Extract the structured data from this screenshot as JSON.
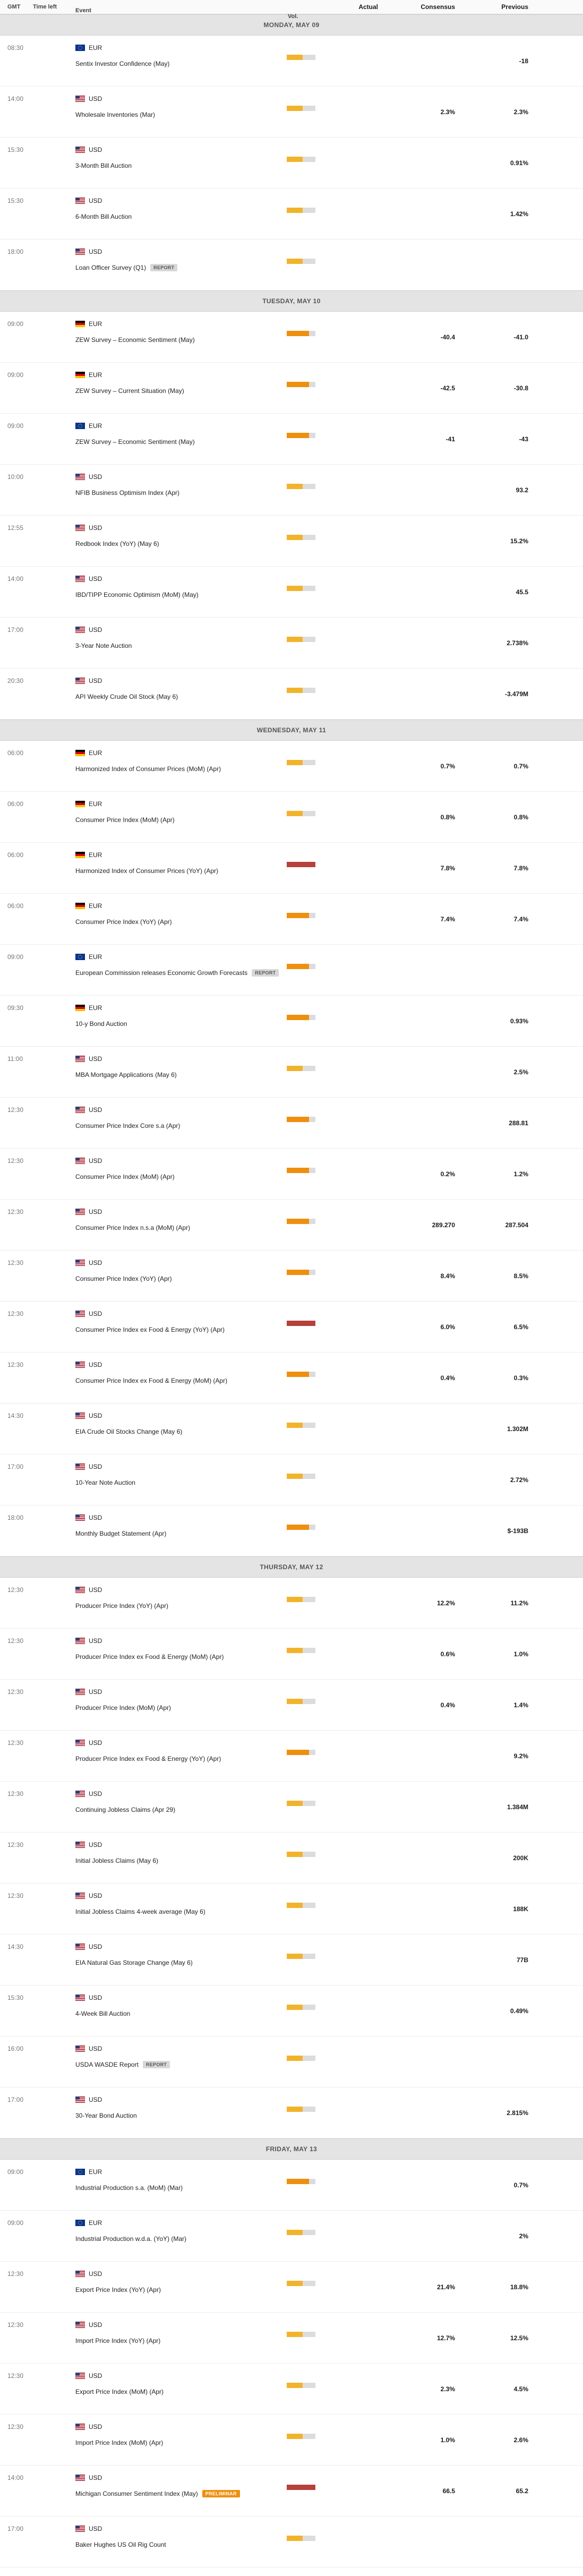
{
  "header": {
    "columns": [
      "GMT",
      "Time left",
      "Event",
      "Vol.",
      "Actual",
      "Consensus",
      "Previous"
    ]
  },
  "colors": {
    "vol_low": "#f2b32c",
    "vol_medium": "#ee8f0e",
    "vol_high": "#b5413a",
    "vol_empty": "#dcdcdc",
    "day_header_bg": "#e4e4e4",
    "badge_report_bg": "#d8d8d8",
    "badge_preliminar_bg": "#ee8f0e"
  },
  "days": [
    {
      "label": "MONDAY, MAY 09",
      "events": [
        {
          "gmt": "08:30",
          "flag": "eu",
          "currency": "EUR",
          "name": "Sentix Investor Confidence (May)",
          "vol": "low",
          "actual": "",
          "consensus": "",
          "previous": "-18",
          "badge": ""
        },
        {
          "gmt": "14:00",
          "flag": "us",
          "currency": "USD",
          "name": "Wholesale Inventories (Mar)",
          "vol": "low",
          "actual": "",
          "consensus": "2.3%",
          "previous": "2.3%",
          "badge": ""
        },
        {
          "gmt": "15:30",
          "flag": "us",
          "currency": "USD",
          "name": "3-Month Bill Auction",
          "vol": "low",
          "actual": "",
          "consensus": "",
          "previous": "0.91%",
          "badge": ""
        },
        {
          "gmt": "15:30",
          "flag": "us",
          "currency": "USD",
          "name": "6-Month Bill Auction",
          "vol": "low",
          "actual": "",
          "consensus": "",
          "previous": "1.42%",
          "badge": ""
        },
        {
          "gmt": "18:00",
          "flag": "us",
          "currency": "USD",
          "name": "Loan Officer Survey (Q1)",
          "vol": "low",
          "actual": "",
          "consensus": "",
          "previous": "",
          "badge": "REPORT",
          "badge_style": "report"
        }
      ]
    },
    {
      "label": "TUESDAY, MAY 10",
      "events": [
        {
          "gmt": "09:00",
          "flag": "de",
          "currency": "EUR",
          "name": "ZEW Survey – Economic Sentiment (May)",
          "vol": "medium",
          "actual": "",
          "consensus": "-40.4",
          "previous": "-41.0",
          "badge": ""
        },
        {
          "gmt": "09:00",
          "flag": "de",
          "currency": "EUR",
          "name": "ZEW Survey – Current Situation (May)",
          "vol": "medium",
          "actual": "",
          "consensus": "-42.5",
          "previous": "-30.8",
          "badge": ""
        },
        {
          "gmt": "09:00",
          "flag": "eu",
          "currency": "EUR",
          "name": "ZEW Survey – Economic Sentiment (May)",
          "vol": "medium",
          "actual": "",
          "consensus": "-41",
          "previous": "-43",
          "badge": ""
        },
        {
          "gmt": "10:00",
          "flag": "us",
          "currency": "USD",
          "name": "NFIB Business Optimism Index (Apr)",
          "vol": "low",
          "actual": "",
          "consensus": "",
          "previous": "93.2",
          "badge": ""
        },
        {
          "gmt": "12:55",
          "flag": "us",
          "currency": "USD",
          "name": "Redbook Index (YoY) (May 6)",
          "vol": "low",
          "actual": "",
          "consensus": "",
          "previous": "15.2%",
          "badge": ""
        },
        {
          "gmt": "14:00",
          "flag": "us",
          "currency": "USD",
          "name": "IBD/TIPP Economic Optimism (MoM) (May)",
          "vol": "low",
          "actual": "",
          "consensus": "",
          "previous": "45.5",
          "badge": ""
        },
        {
          "gmt": "17:00",
          "flag": "us",
          "currency": "USD",
          "name": "3-Year Note Auction",
          "vol": "low",
          "actual": "",
          "consensus": "",
          "previous": "2.738%",
          "badge": ""
        },
        {
          "gmt": "20:30",
          "flag": "us",
          "currency": "USD",
          "name": "API Weekly Crude Oil Stock (May 6)",
          "vol": "low",
          "actual": "",
          "consensus": "",
          "previous": "-3.479M",
          "badge": ""
        }
      ]
    },
    {
      "label": "WEDNESDAY, MAY 11",
      "events": [
        {
          "gmt": "06:00",
          "flag": "de",
          "currency": "EUR",
          "name": "Harmonized Index of Consumer Prices (MoM) (Apr)",
          "vol": "low",
          "actual": "",
          "consensus": "0.7%",
          "previous": "0.7%",
          "badge": ""
        },
        {
          "gmt": "06:00",
          "flag": "de",
          "currency": "EUR",
          "name": "Consumer Price Index (MoM) (Apr)",
          "vol": "low",
          "actual": "",
          "consensus": "0.8%",
          "previous": "0.8%",
          "badge": ""
        },
        {
          "gmt": "06:00",
          "flag": "de",
          "currency": "EUR",
          "name": "Harmonized Index of Consumer Prices (YoY) (Apr)",
          "vol": "high",
          "actual": "",
          "consensus": "7.8%",
          "previous": "7.8%",
          "badge": ""
        },
        {
          "gmt": "06:00",
          "flag": "de",
          "currency": "EUR",
          "name": "Consumer Price Index (YoY) (Apr)",
          "vol": "medium",
          "actual": "",
          "consensus": "7.4%",
          "previous": "7.4%",
          "badge": ""
        },
        {
          "gmt": "09:00",
          "flag": "eu",
          "currency": "EUR",
          "name": "European Commission releases Economic Growth Forecasts",
          "vol": "medium",
          "actual": "",
          "consensus": "",
          "previous": "",
          "badge": "REPORT",
          "badge_style": "report"
        },
        {
          "gmt": "09:30",
          "flag": "de",
          "currency": "EUR",
          "name": "10-y Bond Auction",
          "vol": "medium",
          "actual": "",
          "consensus": "",
          "previous": "0.93%",
          "badge": ""
        },
        {
          "gmt": "11:00",
          "flag": "us",
          "currency": "USD",
          "name": "MBA Mortgage Applications (May 6)",
          "vol": "low",
          "actual": "",
          "consensus": "",
          "previous": "2.5%",
          "badge": ""
        },
        {
          "gmt": "12:30",
          "flag": "us",
          "currency": "USD",
          "name": "Consumer Price Index Core s.a (Apr)",
          "vol": "medium",
          "actual": "",
          "consensus": "",
          "previous": "288.81",
          "badge": ""
        },
        {
          "gmt": "12:30",
          "flag": "us",
          "currency": "USD",
          "name": "Consumer Price Index (MoM) (Apr)",
          "vol": "medium",
          "actual": "",
          "consensus": "0.2%",
          "previous": "1.2%",
          "badge": ""
        },
        {
          "gmt": "12:30",
          "flag": "us",
          "currency": "USD",
          "name": "Consumer Price Index n.s.a (MoM) (Apr)",
          "vol": "medium",
          "actual": "",
          "consensus": "289.270",
          "previous": "287.504",
          "badge": ""
        },
        {
          "gmt": "12:30",
          "flag": "us",
          "currency": "USD",
          "name": "Consumer Price Index (YoY) (Apr)",
          "vol": "medium",
          "actual": "",
          "consensus": "8.4%",
          "previous": "8.5%",
          "badge": ""
        },
        {
          "gmt": "12:30",
          "flag": "us",
          "currency": "USD",
          "name": "Consumer Price Index ex Food & Energy (YoY) (Apr)",
          "vol": "high",
          "actual": "",
          "consensus": "6.0%",
          "previous": "6.5%",
          "badge": ""
        },
        {
          "gmt": "12:30",
          "flag": "us",
          "currency": "USD",
          "name": "Consumer Price Index ex Food & Energy (MoM) (Apr)",
          "vol": "medium",
          "actual": "",
          "consensus": "0.4%",
          "previous": "0.3%",
          "badge": ""
        },
        {
          "gmt": "14:30",
          "flag": "us",
          "currency": "USD",
          "name": "EIA Crude Oil Stocks Change (May 6)",
          "vol": "low",
          "actual": "",
          "consensus": "",
          "previous": "1.302M",
          "badge": ""
        },
        {
          "gmt": "17:00",
          "flag": "us",
          "currency": "USD",
          "name": "10-Year Note Auction",
          "vol": "low",
          "actual": "",
          "consensus": "",
          "previous": "2.72%",
          "badge": ""
        },
        {
          "gmt": "18:00",
          "flag": "us",
          "currency": "USD",
          "name": "Monthly Budget Statement (Apr)",
          "vol": "medium",
          "actual": "",
          "consensus": "",
          "previous": "$-193B",
          "badge": ""
        }
      ]
    },
    {
      "label": "THURSDAY, MAY 12",
      "events": [
        {
          "gmt": "12:30",
          "flag": "us",
          "currency": "USD",
          "name": "Producer Price Index (YoY) (Apr)",
          "vol": "low",
          "actual": "",
          "consensus": "12.2%",
          "previous": "11.2%",
          "badge": ""
        },
        {
          "gmt": "12:30",
          "flag": "us",
          "currency": "USD",
          "name": "Producer Price Index ex Food & Energy (MoM) (Apr)",
          "vol": "low",
          "actual": "",
          "consensus": "0.6%",
          "previous": "1.0%",
          "badge": ""
        },
        {
          "gmt": "12:30",
          "flag": "us",
          "currency": "USD",
          "name": "Producer Price Index (MoM) (Apr)",
          "vol": "low",
          "actual": "",
          "consensus": "0.4%",
          "previous": "1.4%",
          "badge": ""
        },
        {
          "gmt": "12:30",
          "flag": "us",
          "currency": "USD",
          "name": "Producer Price Index ex Food & Energy (YoY) (Apr)",
          "vol": "medium",
          "actual": "",
          "consensus": "",
          "previous": "9.2%",
          "badge": ""
        },
        {
          "gmt": "12:30",
          "flag": "us",
          "currency": "USD",
          "name": "Continuing Jobless Claims (Apr 29)",
          "vol": "low",
          "actual": "",
          "consensus": "",
          "previous": "1.384M",
          "badge": ""
        },
        {
          "gmt": "12:30",
          "flag": "us",
          "currency": "USD",
          "name": "Initial Jobless Claims (May 6)",
          "vol": "low",
          "actual": "",
          "consensus": "",
          "previous": "200K",
          "badge": ""
        },
        {
          "gmt": "12:30",
          "flag": "us",
          "currency": "USD",
          "name": "Initial Jobless Claims 4-week average (May 6)",
          "vol": "low",
          "actual": "",
          "consensus": "",
          "previous": "188K",
          "badge": ""
        },
        {
          "gmt": "14:30",
          "flag": "us",
          "currency": "USD",
          "name": "EIA Natural Gas Storage Change (May 6)",
          "vol": "low",
          "actual": "",
          "consensus": "",
          "previous": "77B",
          "badge": ""
        },
        {
          "gmt": "15:30",
          "flag": "us",
          "currency": "USD",
          "name": "4-Week Bill Auction",
          "vol": "low",
          "actual": "",
          "consensus": "",
          "previous": "0.49%",
          "badge": ""
        },
        {
          "gmt": "16:00",
          "flag": "us",
          "currency": "USD",
          "name": "USDA WASDE Report",
          "vol": "low",
          "actual": "",
          "consensus": "",
          "previous": "",
          "badge": "REPORT",
          "badge_style": "report"
        },
        {
          "gmt": "17:00",
          "flag": "us",
          "currency": "USD",
          "name": "30-Year Bond Auction",
          "vol": "low",
          "actual": "",
          "consensus": "",
          "previous": "2.815%",
          "badge": ""
        }
      ]
    },
    {
      "label": "FRIDAY, MAY 13",
      "events": [
        {
          "gmt": "09:00",
          "flag": "eu",
          "currency": "EUR",
          "name": "Industrial Production s.a. (MoM) (Mar)",
          "vol": "medium",
          "actual": "",
          "consensus": "",
          "previous": "0.7%",
          "badge": ""
        },
        {
          "gmt": "09:00",
          "flag": "eu",
          "currency": "EUR",
          "name": "Industrial Production w.d.a. (YoY) (Mar)",
          "vol": "low",
          "actual": "",
          "consensus": "",
          "previous": "2%",
          "badge": ""
        },
        {
          "gmt": "12:30",
          "flag": "us",
          "currency": "USD",
          "name": "Export Price Index (YoY) (Apr)",
          "vol": "low",
          "actual": "",
          "consensus": "21.4%",
          "previous": "18.8%",
          "badge": ""
        },
        {
          "gmt": "12:30",
          "flag": "us",
          "currency": "USD",
          "name": "Import Price Index (YoY) (Apr)",
          "vol": "low",
          "actual": "",
          "consensus": "12.7%",
          "previous": "12.5%",
          "badge": ""
        },
        {
          "gmt": "12:30",
          "flag": "us",
          "currency": "USD",
          "name": "Export Price Index (MoM) (Apr)",
          "vol": "low",
          "actual": "",
          "consensus": "2.3%",
          "previous": "4.5%",
          "badge": ""
        },
        {
          "gmt": "12:30",
          "flag": "us",
          "currency": "USD",
          "name": "Import Price Index (MoM) (Apr)",
          "vol": "low",
          "actual": "",
          "consensus": "1.0%",
          "previous": "2.6%",
          "badge": ""
        },
        {
          "gmt": "14:00",
          "flag": "us",
          "currency": "USD",
          "name": "Michigan Consumer Sentiment Index (May)",
          "vol": "high",
          "actual": "",
          "consensus": "66.5",
          "previous": "65.2",
          "badge": "PRELIMINAR",
          "badge_style": "preliminar"
        },
        {
          "gmt": "17:00",
          "flag": "us",
          "currency": "USD",
          "name": "Baker Hughes US Oil Rig Count",
          "vol": "low",
          "actual": "",
          "consensus": "",
          "previous": "",
          "badge": ""
        }
      ]
    }
  ]
}
